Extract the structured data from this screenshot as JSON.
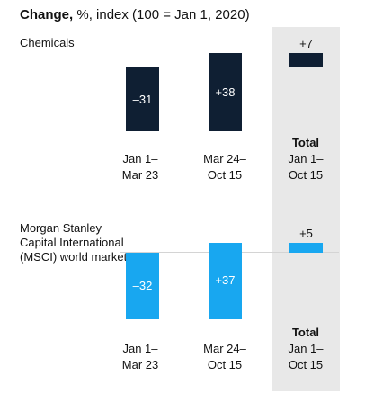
{
  "title": {
    "bold": "Change,",
    "rest": " %, index (100 = Jan 1, 2020)"
  },
  "colors": {
    "chemicals": "#0f1f33",
    "msci": "#18a7f0",
    "total_shade": "#e8e8e8"
  },
  "rows": [
    {
      "name": "Chemicals",
      "periods": [
        {
          "line1": "Jan 1–",
          "line2": "Mar 23"
        },
        {
          "line1": "Mar 24–",
          "line2": "Oct 15"
        },
        {
          "bold": "Total",
          "line1": "Jan 1–",
          "line2": "Oct 15"
        }
      ]
    },
    {
      "name": "Morgan Stanley Capital International (MSCI) world market",
      "periods": [
        {
          "line1": "Jan 1–",
          "line2": "Mar 23"
        },
        {
          "line1": "Mar 24–",
          "line2": "Oct 15"
        },
        {
          "bold": "Total",
          "line1": "Jan 1–",
          "line2": "Oct 15"
        }
      ]
    }
  ],
  "chart_data": [
    {
      "type": "bar",
      "chart_kind": "waterfall",
      "series": "Chemicals",
      "categories": [
        "Jan 1–Mar 23",
        "Mar 24–Oct 15",
        "Total Jan 1–Oct 15"
      ],
      "values": [
        -31,
        38,
        7
      ],
      "labels": [
        "–31",
        "+38",
        "+7"
      ]
    },
    {
      "type": "bar",
      "chart_kind": "waterfall",
      "series": "Morgan Stanley Capital International (MSCI) world market",
      "categories": [
        "Jan 1–Mar 23",
        "Mar 24–Oct 15",
        "Total Jan 1–Oct 15"
      ],
      "values": [
        -32,
        37,
        5
      ],
      "labels": [
        "–32",
        "+37",
        "+5"
      ]
    }
  ]
}
